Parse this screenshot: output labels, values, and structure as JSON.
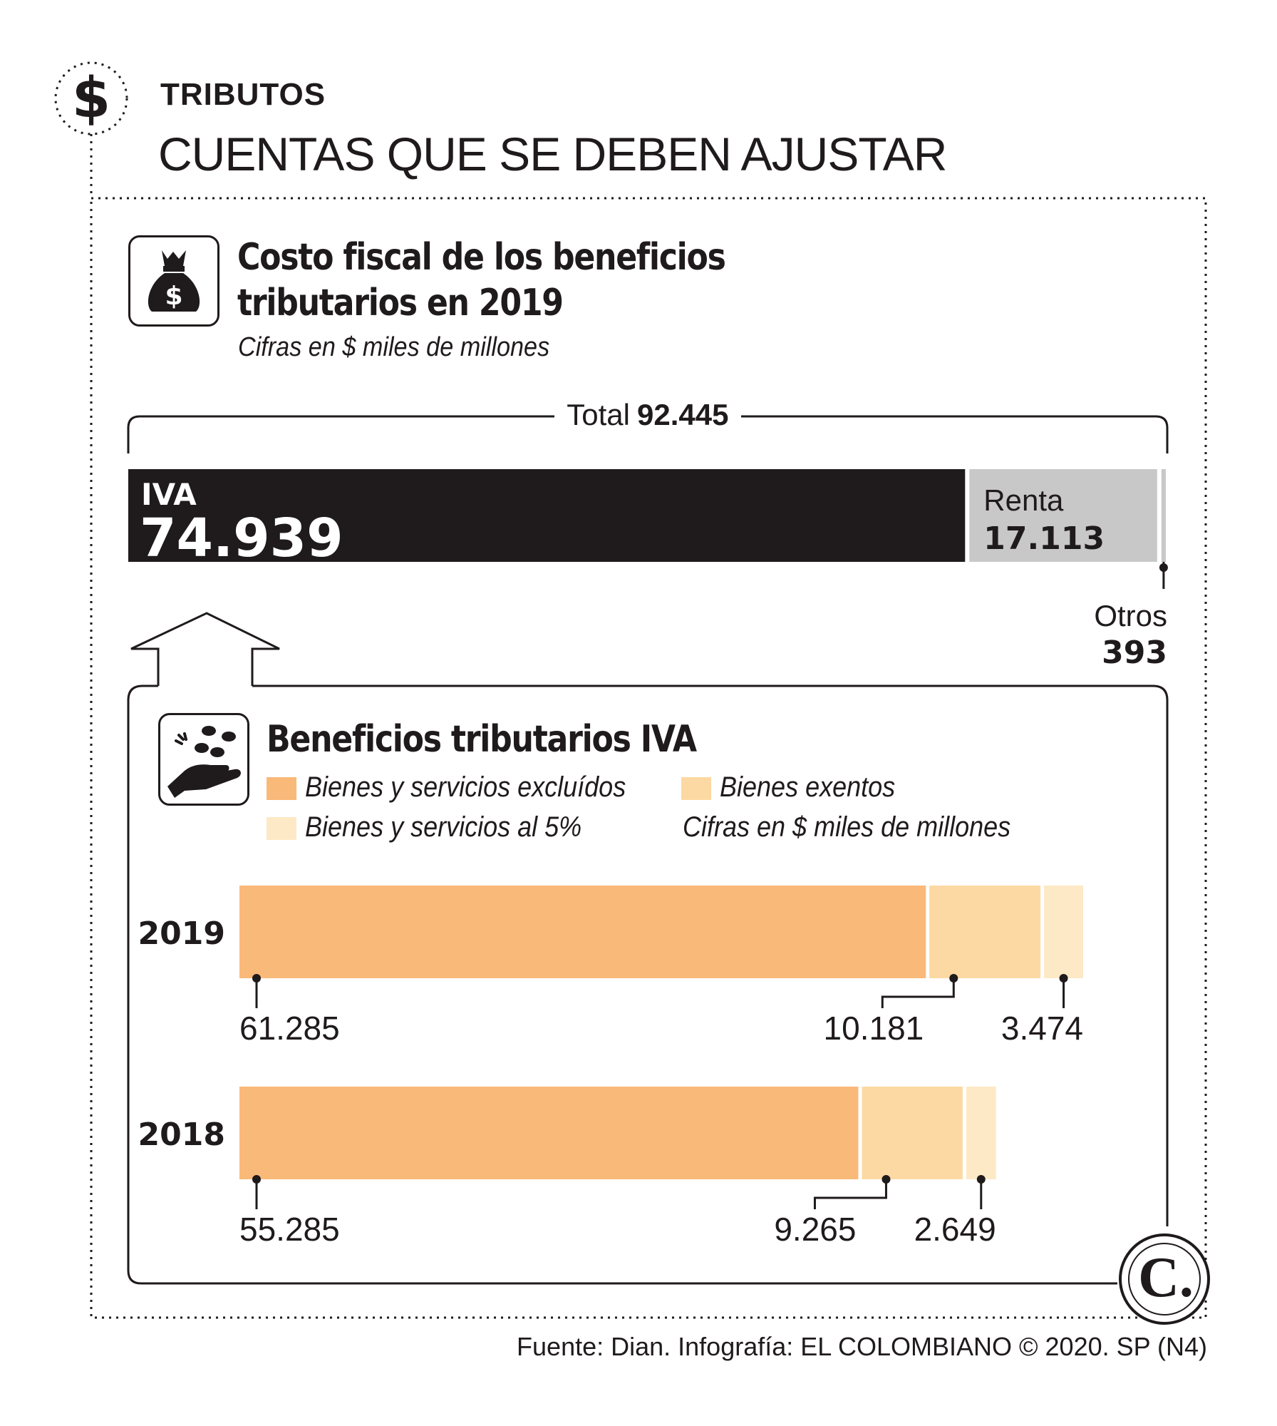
{
  "header": {
    "kicker": "TRIBUTOS",
    "headline": "CUENTAS QUE SE DEBEN AJUSTAR"
  },
  "section1": {
    "title_line1": "Costo fiscal de los beneficios",
    "title_line2": "tributarios en 2019",
    "note": "Cifras en $ miles de millones",
    "icon": "money-bag-icon"
  },
  "section2": {
    "title": "Beneficios tributarios IVA",
    "note": "Cifras en $ miles de millones",
    "icon": "hand-coins-icon"
  },
  "source": "Fuente: Dian. Infografía: EL COLOMBIANO © 2020. SP (N4)",
  "logo": {
    "letter": "C."
  },
  "colors": {
    "ink": "#1f1a1b",
    "gray": "#c8c8c8",
    "excluidos": "#f9b978",
    "exentos": "#fcd9a2",
    "al5": "#fde9c6"
  },
  "chart_data": [
    {
      "type": "bar",
      "stacked": true,
      "orientation": "horizontal",
      "title": "Costo fiscal de los beneficios tributarios en 2019",
      "subtitle": "Cifras en $ miles de millones",
      "total_label": "Total",
      "total_value": "92.445",
      "segments": [
        {
          "name": "IVA",
          "value": 74939,
          "label": "74.939"
        },
        {
          "name": "Renta",
          "value": 17113,
          "label": "17.113"
        },
        {
          "name": "Otros",
          "value": 393,
          "label": "393"
        }
      ]
    },
    {
      "type": "bar",
      "stacked": true,
      "orientation": "horizontal",
      "title": "Beneficios tributarios IVA",
      "subtitle": "Cifras en $ miles de millones",
      "categories": [
        "2019",
        "2018"
      ],
      "series": [
        {
          "name": "Bienes y servicios excluídos",
          "values": [
            61285,
            55285
          ],
          "labels": [
            "61.285",
            "55.285"
          ]
        },
        {
          "name": "Bienes exentos",
          "values": [
            10181,
            9265
          ],
          "labels": [
            "10.181",
            "9.265"
          ]
        },
        {
          "name": "Bienes y servicios al 5%",
          "values": [
            3474,
            2649
          ],
          "labels": [
            "3.474",
            "2.649"
          ]
        }
      ]
    }
  ]
}
